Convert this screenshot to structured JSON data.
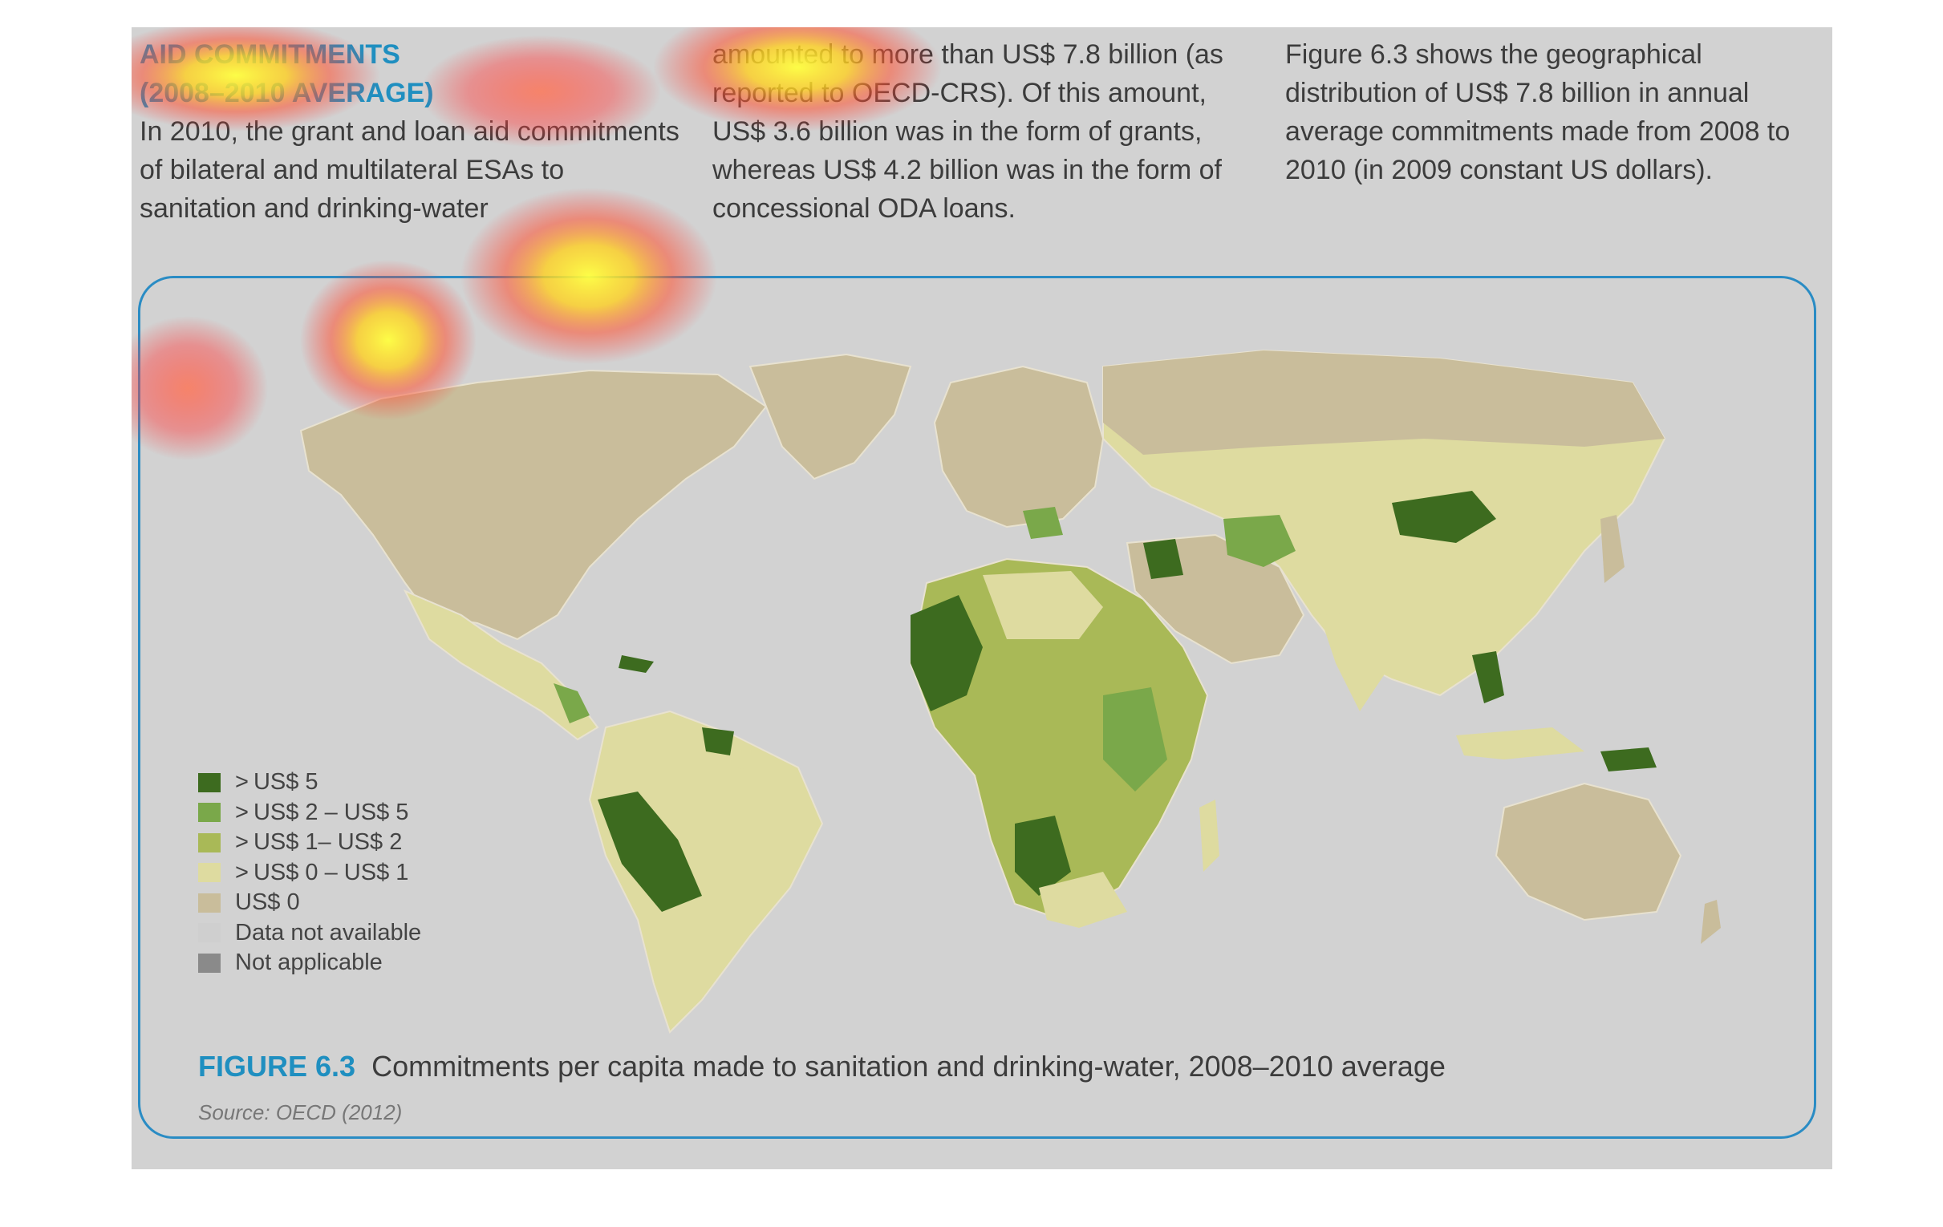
{
  "columns": {
    "col1": {
      "heading_line1": "AID COMMITMENTS",
      "heading_line2": "(2008–2010 AVERAGE)",
      "text": "In 2010, the grant and loan aid commitments of bilateral and multilateral ESAs to sanitation and drinking-water"
    },
    "col2": {
      "text": "amounted to more than US$ 7.8 billion (as reported to OECD-CRS). Of this amount, US$ 3.6 billion was in the form of grants, whereas US$ 4.2 billion was in the form of concessional ODA loans."
    },
    "col3": {
      "text": "Figure 6.3 shows the geographical distribution of US$ 7.8 billion in annual average commitments made from 2008 to 2010 (in 2009 constant US dollars)."
    }
  },
  "legend": {
    "items": [
      {
        "prefix": ">",
        "label": "US$ 5",
        "color": "#3d6b1f"
      },
      {
        "prefix": ">",
        "label": "US$ 2 – US$ 5",
        "color": "#7aa84a"
      },
      {
        "prefix": ">",
        "label": "US$ 1– US$ 2",
        "color": "#a9b957"
      },
      {
        "prefix": ">",
        "label": "US$ 0 – US$ 1",
        "color": "#dedba0"
      },
      {
        "prefix": "",
        "label": "US$ 0",
        "color": "#c9bd9b"
      },
      {
        "prefix": "",
        "label": "Data not available",
        "color": "#cfcfcf"
      },
      {
        "prefix": "",
        "label": "Not applicable",
        "color": "#8a8a8a"
      }
    ]
  },
  "figure": {
    "label": "FIGURE 6.3",
    "caption": "Commitments per capita made to sanitation and drinking-water, 2008–2010 average",
    "source": "Source: OECD (2012)"
  },
  "colors": {
    "accent": "#1f8fc0",
    "page_background": "#d2d2d2",
    "no_commitment": "#c9bd9b",
    "low": "#dedba0",
    "mid": "#a9b957",
    "high": "#7aa84a",
    "highest": "#3d6b1f"
  }
}
